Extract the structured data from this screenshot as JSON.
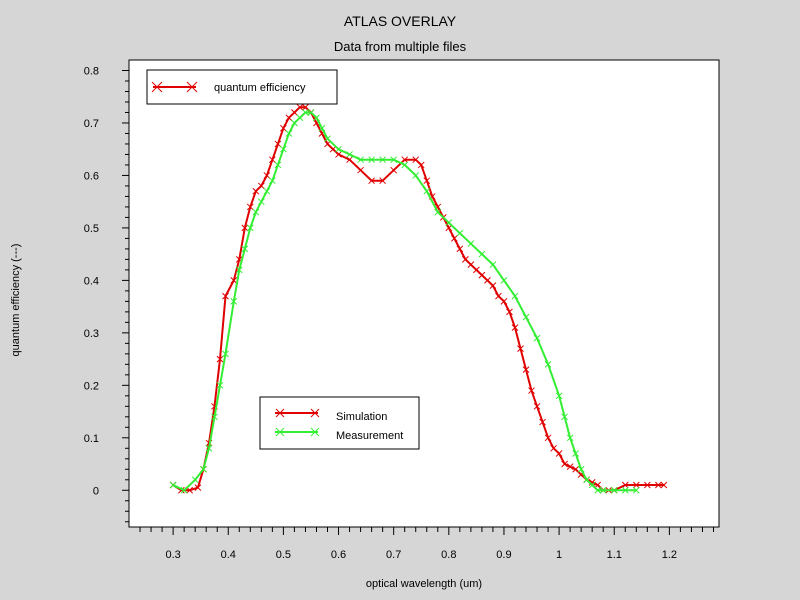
{
  "chart_data": {
    "type": "line",
    "title": "ATLAS OVERLAY",
    "subtitle": "Data from multiple files",
    "xlabel": "optical wavelength (um)",
    "ylabel": "quantum efficiency (---)",
    "xlim": [
      0.22,
      1.29
    ],
    "ylim": [
      -0.07,
      0.82
    ],
    "x_ticks": [
      "0.3",
      "0.4",
      "0.5",
      "0.6",
      "0.7",
      "0.8",
      "0.9",
      "1",
      "1.1",
      "1.2"
    ],
    "x_tick_values": [
      0.3,
      0.4,
      0.5,
      0.6,
      0.7,
      0.8,
      0.9,
      1.0,
      1.1,
      1.2
    ],
    "y_ticks": [
      "0",
      "0.1",
      "0.2",
      "0.3",
      "0.4",
      "0.5",
      "0.6",
      "0.7",
      "0.8"
    ],
    "y_tick_values": [
      0,
      0.1,
      0.2,
      0.3,
      0.4,
      0.5,
      0.6,
      0.7,
      0.8
    ],
    "grid": false,
    "legend_top": {
      "position": "top-left",
      "label": "quantum efficiency",
      "color": "#e00000"
    },
    "legend_bottom": {
      "position": "bottom-center"
    },
    "series": [
      {
        "name": "Simulation",
        "color": "#e00000",
        "x": [
          0.3,
          0.315,
          0.33,
          0.345,
          0.355,
          0.365,
          0.375,
          0.385,
          0.395,
          0.41,
          0.42,
          0.43,
          0.44,
          0.45,
          0.46,
          0.47,
          0.48,
          0.49,
          0.5,
          0.51,
          0.52,
          0.53,
          0.54,
          0.55,
          0.56,
          0.57,
          0.58,
          0.59,
          0.6,
          0.62,
          0.64,
          0.66,
          0.68,
          0.7,
          0.72,
          0.74,
          0.75,
          0.76,
          0.77,
          0.78,
          0.79,
          0.8,
          0.81,
          0.82,
          0.83,
          0.84,
          0.85,
          0.86,
          0.87,
          0.88,
          0.89,
          0.9,
          0.91,
          0.92,
          0.93,
          0.94,
          0.95,
          0.96,
          0.97,
          0.98,
          0.99,
          1.0,
          1.01,
          1.02,
          1.03,
          1.04,
          1.05,
          1.06,
          1.07,
          1.08,
          1.09,
          1.1,
          1.12,
          1.14,
          1.16,
          1.18,
          1.19
        ],
        "values": [
          0.01,
          0.0,
          0.0,
          0.005,
          0.04,
          0.09,
          0.16,
          0.25,
          0.37,
          0.4,
          0.44,
          0.5,
          0.54,
          0.57,
          0.58,
          0.6,
          0.63,
          0.66,
          0.69,
          0.71,
          0.72,
          0.73,
          0.73,
          0.72,
          0.7,
          0.68,
          0.66,
          0.65,
          0.64,
          0.63,
          0.61,
          0.59,
          0.59,
          0.61,
          0.63,
          0.63,
          0.62,
          0.59,
          0.56,
          0.54,
          0.52,
          0.5,
          0.48,
          0.46,
          0.44,
          0.43,
          0.42,
          0.41,
          0.4,
          0.39,
          0.37,
          0.36,
          0.34,
          0.31,
          0.27,
          0.23,
          0.19,
          0.16,
          0.13,
          0.1,
          0.08,
          0.07,
          0.05,
          0.045,
          0.04,
          0.03,
          0.02,
          0.015,
          0.01,
          0.0,
          0.0,
          0.0,
          0.01,
          0.01,
          0.01,
          0.01,
          0.01
        ]
      },
      {
        "name": "Measurement",
        "color": "#33ee33",
        "x": [
          0.3,
          0.32,
          0.34,
          0.355,
          0.365,
          0.375,
          0.385,
          0.395,
          0.41,
          0.42,
          0.43,
          0.44,
          0.45,
          0.46,
          0.47,
          0.48,
          0.49,
          0.5,
          0.51,
          0.52,
          0.53,
          0.54,
          0.55,
          0.56,
          0.57,
          0.58,
          0.6,
          0.62,
          0.64,
          0.66,
          0.68,
          0.7,
          0.72,
          0.74,
          0.76,
          0.78,
          0.8,
          0.82,
          0.84,
          0.86,
          0.88,
          0.9,
          0.92,
          0.94,
          0.96,
          0.98,
          1.0,
          1.01,
          1.02,
          1.03,
          1.04,
          1.05,
          1.06,
          1.07,
          1.08,
          1.1,
          1.12,
          1.14
        ],
        "values": [
          0.01,
          0.0,
          0.02,
          0.04,
          0.08,
          0.14,
          0.2,
          0.26,
          0.36,
          0.42,
          0.46,
          0.5,
          0.53,
          0.55,
          0.57,
          0.59,
          0.62,
          0.65,
          0.68,
          0.7,
          0.71,
          0.72,
          0.72,
          0.71,
          0.69,
          0.67,
          0.65,
          0.64,
          0.63,
          0.63,
          0.63,
          0.63,
          0.62,
          0.6,
          0.57,
          0.53,
          0.51,
          0.49,
          0.47,
          0.45,
          0.43,
          0.4,
          0.37,
          0.33,
          0.29,
          0.24,
          0.18,
          0.14,
          0.1,
          0.07,
          0.04,
          0.02,
          0.01,
          0.0,
          0.0,
          0.0,
          0.0,
          0.0
        ]
      }
    ]
  }
}
